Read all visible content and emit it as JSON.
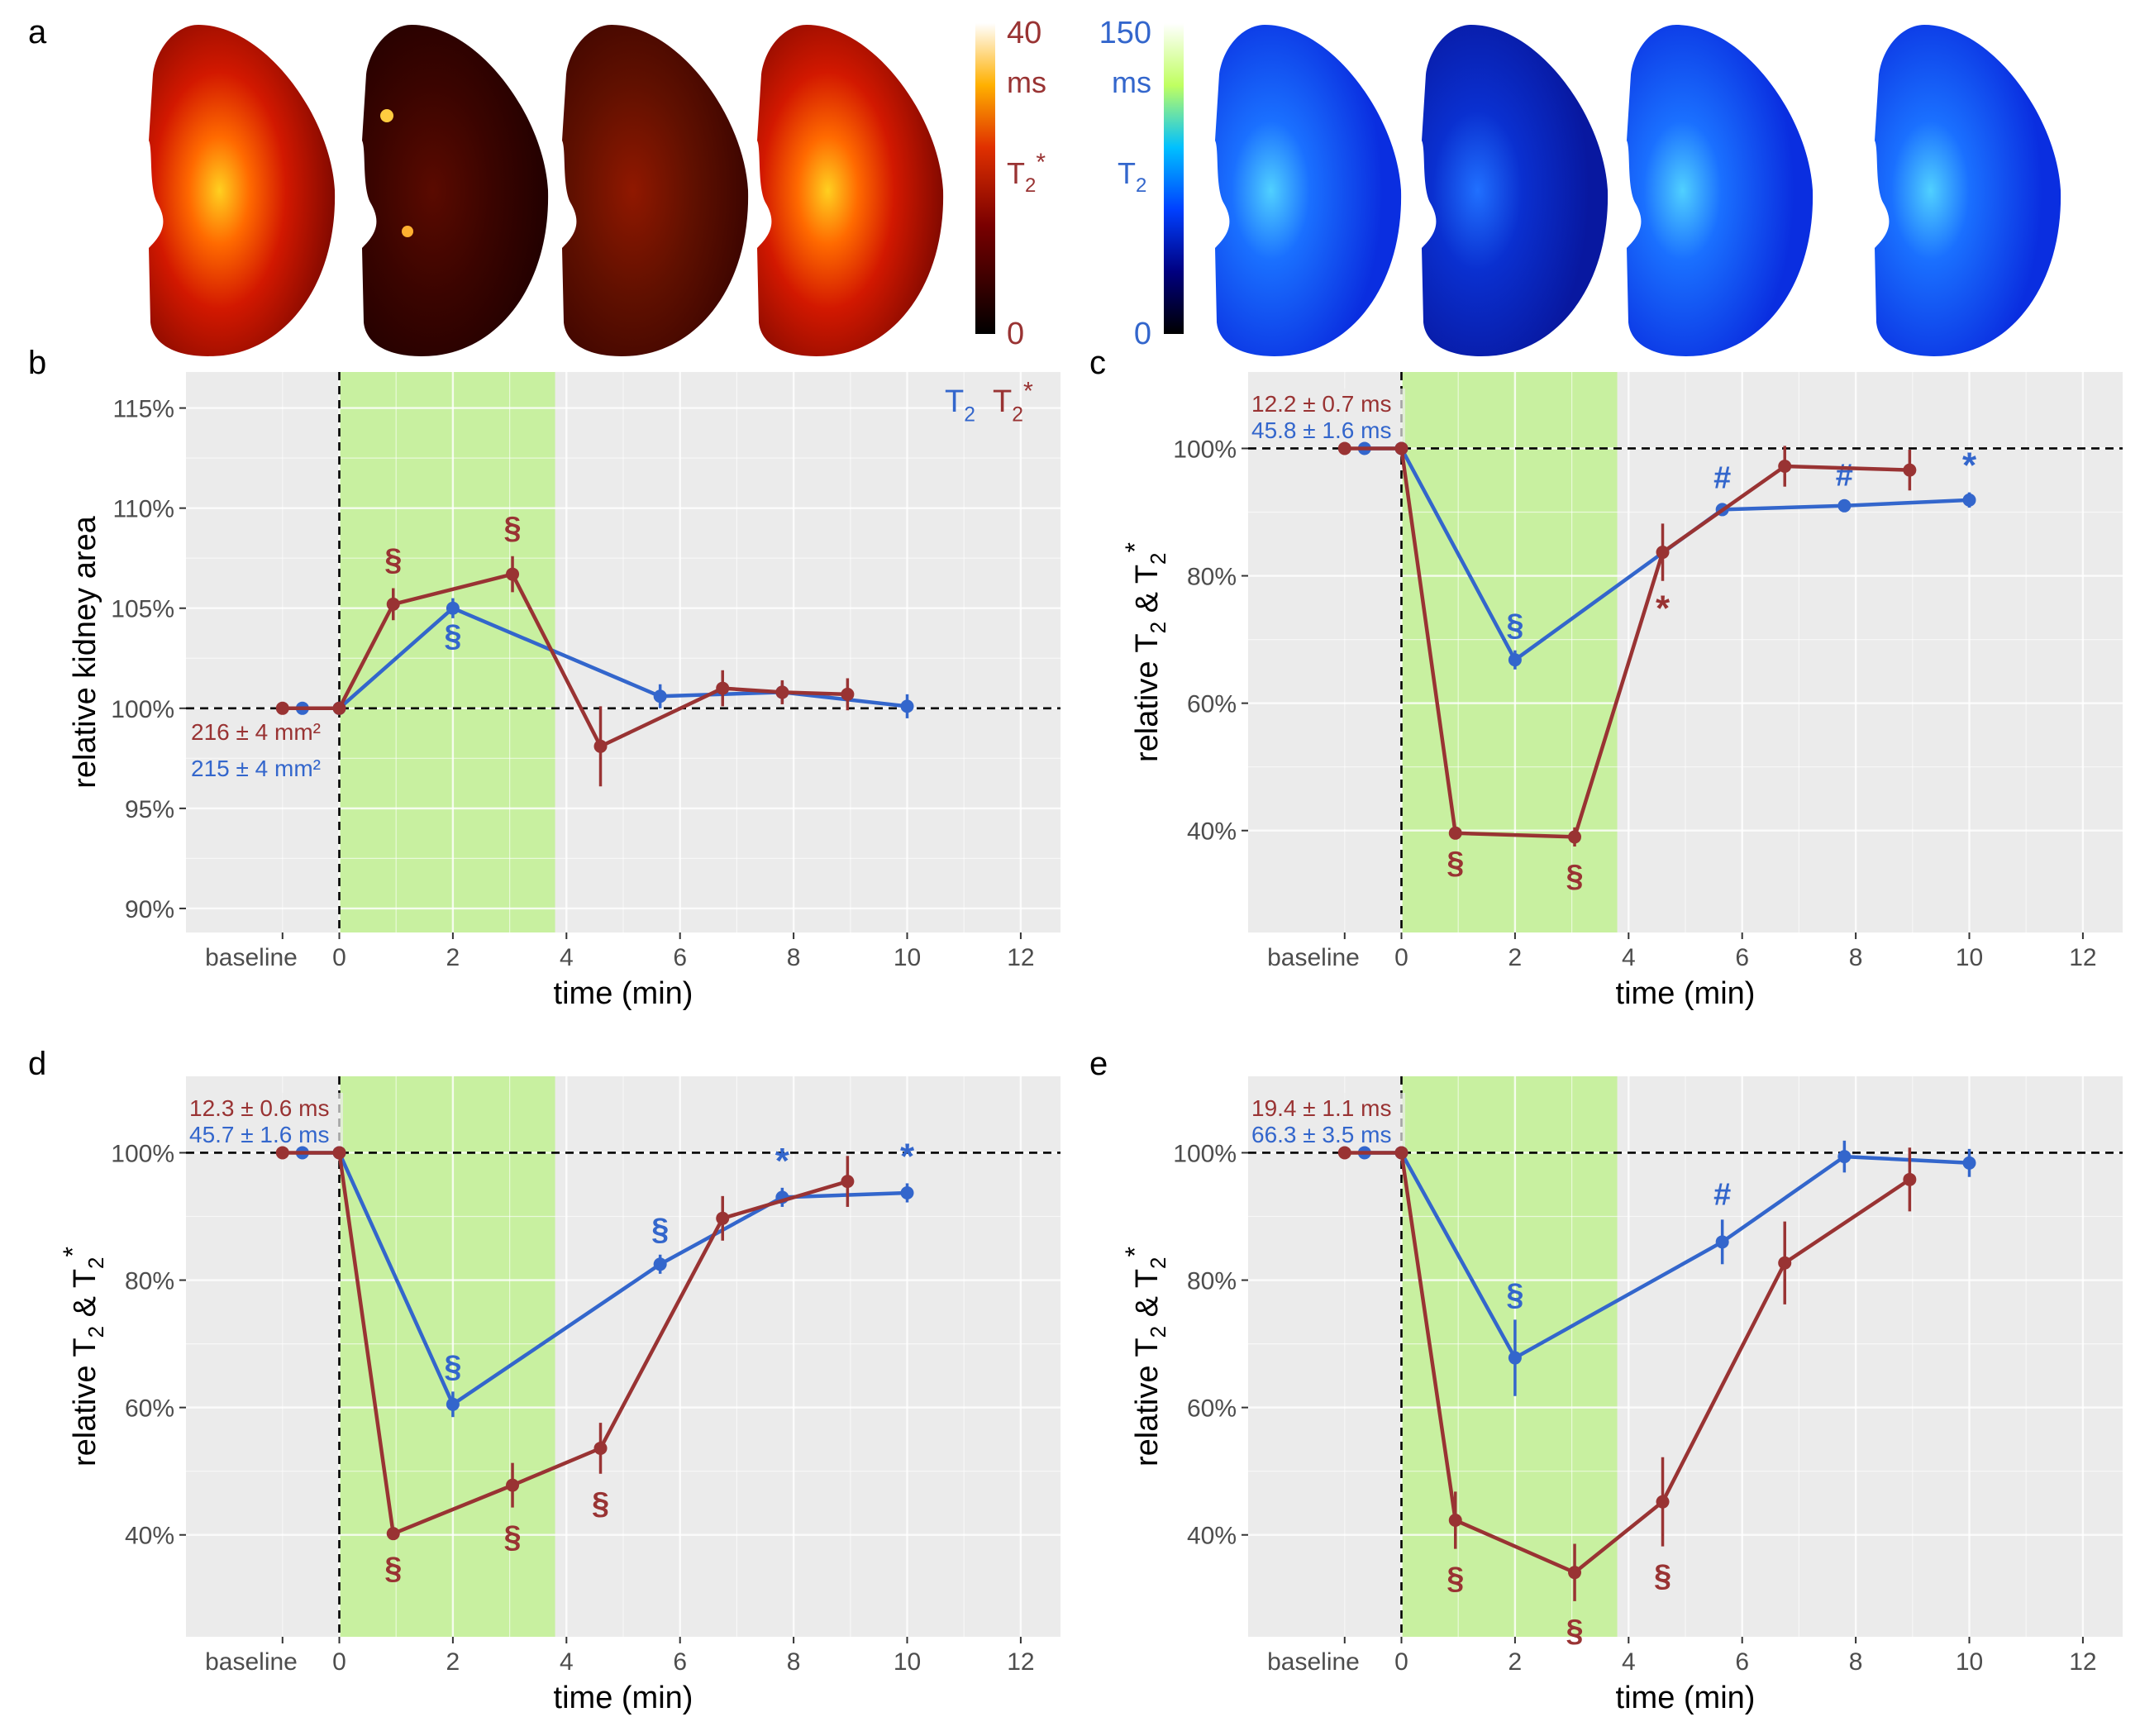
{
  "colors": {
    "t2": "#3366cc",
    "t2star": "#993333",
    "stimulus": "#c8f0a0",
    "panel_bg": "#ebebeb",
    "grid": "#ffffff",
    "text": "#000000",
    "tick_text": "#4d4d4d"
  },
  "panel_a": {
    "label": "a",
    "t2star_scale": {
      "max": "40",
      "unit": "ms",
      "param": "T",
      "param_sub": "2",
      "param_sup": "*",
      "min": "0"
    },
    "t2_scale": {
      "max": "150",
      "unit": "ms",
      "param": "T",
      "param_sub": "2",
      "min": "0"
    }
  },
  "chart_data": [
    {
      "panel": "b",
      "type": "line",
      "ylabel": "relative kidney area",
      "xlabel": "time (min)",
      "xlim": [
        -2.7,
        12.7
      ],
      "ylim": [
        88.8,
        116.8
      ],
      "x_ticks": [
        0,
        2,
        4,
        6,
        8,
        10,
        12
      ],
      "x_tick_labels": [
        "0",
        "2",
        "4",
        "6",
        "8",
        "10",
        "12"
      ],
      "baseline_label": "baseline",
      "y_ticks": [
        90,
        95,
        100,
        105,
        110,
        115
      ],
      "y_tick_labels": [
        "90%",
        "95%",
        "100%",
        "105%",
        "110%",
        "115%"
      ],
      "stimulus": [
        0,
        3.8
      ],
      "reference": 100,
      "legend": {
        "t2": "T",
        "t2_sub": "2",
        "t2star": "T",
        "t2star_sub": "2",
        "t2star_sup": "*",
        "position": "top-right"
      },
      "baseline_annotations": {
        "t2star": "216 ± 4 mm²",
        "t2": "215 ± 4 mm²"
      },
      "series": [
        {
          "name": "T2*",
          "color_key": "t2star",
          "x": [
            -1,
            0,
            0.95,
            3.05,
            4.6,
            6.75,
            7.8,
            8.95
          ],
          "y": [
            100,
            100,
            105.2,
            106.7,
            98.1,
            101,
            100.8,
            100.7
          ],
          "err": [
            0,
            0,
            0.8,
            0.9,
            2,
            0.9,
            0.6,
            0.8
          ],
          "markers": [
            "",
            "",
            "§",
            "§",
            "",
            "",
            "",
            ""
          ]
        },
        {
          "name": "T2",
          "color_key": "t2",
          "x": [
            -0.65,
            0,
            2,
            5.65,
            7.8,
            10
          ],
          "y": [
            100,
            100,
            105,
            100.6,
            100.8,
            100.1
          ],
          "err": [
            0,
            0,
            0.5,
            0.6,
            0.5,
            0.6
          ],
          "markers": [
            "",
            "",
            "§",
            "",
            "",
            ""
          ]
        }
      ]
    },
    {
      "panel": "c",
      "type": "line",
      "ylabel": "relative T2 & T2*",
      "xlabel": "time (min)",
      "xlim": [
        -2.7,
        12.7
      ],
      "ylim": [
        24,
        112
      ],
      "x_ticks": [
        0,
        2,
        4,
        6,
        8,
        10,
        12
      ],
      "x_tick_labels": [
        "0",
        "2",
        "4",
        "6",
        "8",
        "10",
        "12"
      ],
      "baseline_label": "baseline",
      "y_ticks": [
        40,
        60,
        80,
        100
      ],
      "y_tick_labels": [
        "40%",
        "60%",
        "80%",
        "100%"
      ],
      "stimulus": [
        0,
        3.8
      ],
      "reference": 100,
      "baseline_annotations": {
        "t2star": "12.2 ± 0.7 ms",
        "t2": "45.8 ± 1.6 ms"
      },
      "series": [
        {
          "name": "T2*",
          "color_key": "t2star",
          "x": [
            -1,
            0,
            0.95,
            3.05,
            4.6,
            6.75,
            8.95
          ],
          "y": [
            100,
            100,
            39.6,
            39,
            83.7,
            97.2,
            96.6
          ],
          "err": [
            0,
            0,
            0,
            1.5,
            4.5,
            3.2,
            3.2
          ],
          "markers": [
            "",
            "",
            "§",
            "§",
            "*",
            "",
            ""
          ]
        },
        {
          "name": "T2",
          "color_key": "t2",
          "x": [
            -0.65,
            0,
            2,
            5.65,
            7.8,
            10
          ],
          "y": [
            100,
            100,
            66.8,
            90.4,
            91,
            91.9
          ],
          "err": [
            0,
            0,
            1.5,
            1,
            0.8,
            1.2
          ],
          "markers": [
            "",
            "",
            "§",
            "#",
            "#",
            "*"
          ]
        }
      ]
    },
    {
      "panel": "d",
      "type": "line",
      "ylabel": "relative T2 & T2*",
      "xlabel": "time (min)",
      "xlim": [
        -2.7,
        12.7
      ],
      "ylim": [
        24,
        112
      ],
      "x_ticks": [
        0,
        2,
        4,
        6,
        8,
        10,
        12
      ],
      "x_tick_labels": [
        "0",
        "2",
        "4",
        "6",
        "8",
        "10",
        "12"
      ],
      "baseline_label": "baseline",
      "y_ticks": [
        40,
        60,
        80,
        100
      ],
      "y_tick_labels": [
        "40%",
        "60%",
        "80%",
        "100%"
      ],
      "stimulus": [
        0,
        3.8
      ],
      "reference": 100,
      "baseline_annotations": {
        "t2star": "12.3 ± 0.6 ms",
        "t2": "45.7 ± 1.6 ms"
      },
      "series": [
        {
          "name": "T2*",
          "color_key": "t2star",
          "x": [
            -1,
            0,
            0.95,
            3.05,
            4.6,
            6.75,
            8.95
          ],
          "y": [
            100,
            100,
            40.2,
            47.8,
            53.6,
            89.7,
            95.5
          ],
          "err": [
            0,
            0,
            0.8,
            3.5,
            4,
            3.5,
            4
          ],
          "markers": [
            "",
            "",
            "§",
            "§",
            "§",
            "",
            ""
          ]
        },
        {
          "name": "T2",
          "color_key": "t2",
          "x": [
            -0.65,
            0,
            2,
            5.65,
            7.8,
            10
          ],
          "y": [
            100,
            100,
            60.5,
            82.5,
            93,
            93.7
          ],
          "err": [
            0,
            0,
            2,
            1.5,
            1.5,
            1.5
          ],
          "markers": [
            "",
            "",
            "§",
            "§",
            "*",
            "*"
          ]
        }
      ]
    },
    {
      "panel": "e",
      "type": "line",
      "ylabel": "relative T2 & T2*",
      "xlabel": "time (min)",
      "xlim": [
        -2.7,
        12.7
      ],
      "ylim": [
        24,
        112
      ],
      "x_ticks": [
        0,
        2,
        4,
        6,
        8,
        10,
        12
      ],
      "x_tick_labels": [
        "0",
        "2",
        "4",
        "6",
        "8",
        "10",
        "12"
      ],
      "baseline_label": "baseline",
      "y_ticks": [
        40,
        60,
        80,
        100
      ],
      "y_tick_labels": [
        "40%",
        "60%",
        "80%",
        "100%"
      ],
      "stimulus": [
        0,
        3.8
      ],
      "reference": 100,
      "baseline_annotations": {
        "t2star": "19.4 ± 1.1 ms",
        "t2": "66.3 ± 3.5 ms"
      },
      "series": [
        {
          "name": "T2*",
          "color_key": "t2star",
          "x": [
            -1,
            0,
            0.95,
            3.05,
            4.6,
            6.75,
            8.95
          ],
          "y": [
            100,
            100,
            42.3,
            34.1,
            45.2,
            82.7,
            95.8
          ],
          "err": [
            0,
            0,
            4.5,
            4.5,
            7,
            6.5,
            5
          ],
          "markers": [
            "",
            "",
            "§",
            "§",
            "§",
            "",
            ""
          ]
        },
        {
          "name": "T2",
          "color_key": "t2",
          "x": [
            -0.65,
            0,
            2,
            5.65,
            7.8,
            10
          ],
          "y": [
            100,
            100,
            67.8,
            86,
            99.4,
            98.4
          ],
          "err": [
            0,
            0,
            6,
            3.5,
            2.5,
            2.2
          ],
          "markers": [
            "",
            "",
            "§",
            "#",
            "",
            ""
          ]
        }
      ]
    }
  ]
}
